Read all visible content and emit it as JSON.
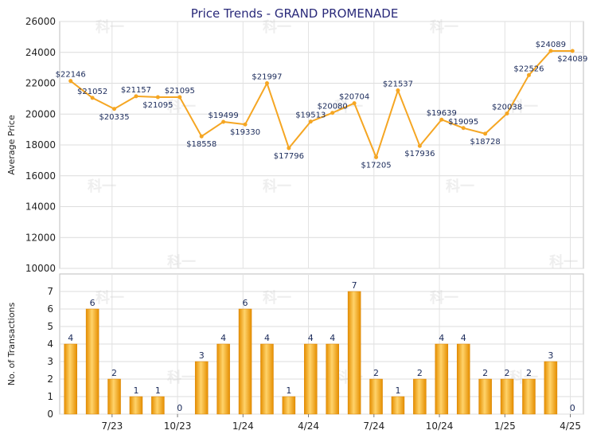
{
  "chart_data": [
    {
      "type": "line",
      "title": "Price Trends - GRAND PROMENADE",
      "ylabel": "Average Price",
      "ylim": [
        10000,
        26000
      ],
      "yticks": [
        10000,
        12000,
        14000,
        16000,
        18000,
        20000,
        22000,
        24000,
        26000
      ],
      "grid": true,
      "color": "#f5a623",
      "series": [
        {
          "values": [
            22146,
            21052,
            20335,
            21157,
            21095,
            21095,
            18558,
            19499,
            19330,
            21997,
            17796,
            19513,
            20080,
            20704,
            17205,
            21537,
            17936,
            19639,
            19095,
            18728,
            20038,
            22526,
            24089,
            24089
          ],
          "labels": [
            "$22146",
            "$21052",
            "$20335",
            "$21157",
            "$21095",
            "$21095",
            "$18558",
            "$19499",
            "$19330",
            "$21997",
            "$17796",
            "$19513",
            "$20080",
            "$20704",
            "$17205",
            "$21537",
            "$17936",
            "$19639",
            "$19095",
            "$18728",
            "$20038",
            "$22526",
            "$24089",
            "$24089"
          ]
        }
      ]
    },
    {
      "type": "bar",
      "ylabel": "No. of Transactions",
      "ylim": [
        0,
        7
      ],
      "yticks": [
        0,
        1,
        2,
        3,
        4,
        5,
        6,
        7
      ],
      "grid": true,
      "color": "#f5a623",
      "values": [
        4,
        6,
        2,
        1,
        1,
        0,
        3,
        4,
        6,
        4,
        1,
        4,
        4,
        7,
        2,
        1,
        2,
        4,
        4,
        2,
        2,
        2,
        3,
        0
      ],
      "x_tick_labels": [
        "7/23",
        "10/23",
        "1/24",
        "4/24",
        "7/24",
        "10/24",
        "1/25",
        "4/25"
      ]
    }
  ],
  "watermark": "科一"
}
